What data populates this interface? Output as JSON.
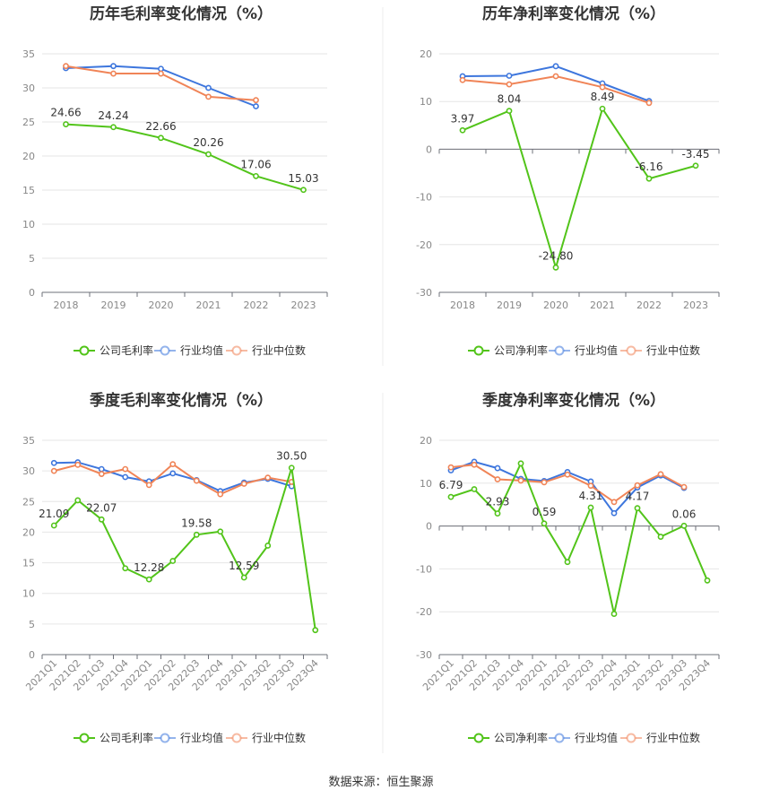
{
  "source_note": "数据来源：恒生聚源",
  "colors": {
    "company": "#52c41a",
    "avg": "#3d76dd",
    "median": "#f08457"
  },
  "chart_data": [
    {
      "type": "line",
      "title": "历年毛利率变化情况（%）",
      "x": [
        "2018",
        "2019",
        "2020",
        "2021",
        "2022",
        "2023"
      ],
      "ylim": [
        0,
        35
      ],
      "yticks": [
        0,
        5,
        10,
        15,
        20,
        25,
        30,
        35
      ],
      "grid": true,
      "legend_position": "bottom",
      "series": [
        {
          "key": "company",
          "name": "公司毛利率",
          "values": [
            24.66,
            24.24,
            22.66,
            20.26,
            17.06,
            15.03
          ],
          "labels": [
            "24.66",
            "24.24",
            "22.66",
            "20.26",
            "17.06",
            "15.03"
          ]
        },
        {
          "key": "avg",
          "name": "行业均值",
          "values": [
            32.9,
            33.2,
            32.8,
            30.0,
            27.3,
            null
          ]
        },
        {
          "key": "median",
          "name": "行业中位数",
          "values": [
            33.2,
            32.1,
            32.1,
            28.7,
            28.2,
            null
          ]
        }
      ]
    },
    {
      "type": "line",
      "title": "历年净利率变化情况（%）",
      "x": [
        "2018",
        "2019",
        "2020",
        "2021",
        "2022",
        "2023"
      ],
      "ylim": [
        -30,
        20
      ],
      "yticks": [
        -30,
        -20,
        -10,
        0,
        10,
        20
      ],
      "grid": true,
      "legend_position": "bottom",
      "series": [
        {
          "key": "company",
          "name": "公司净利率",
          "values": [
            3.97,
            8.04,
            -24.8,
            8.49,
            -6.16,
            -3.45
          ],
          "labels": [
            "3.97",
            "8.04",
            "-24.80",
            "8.49",
            "-6.16",
            "-3.45"
          ]
        },
        {
          "key": "avg",
          "name": "行业均值",
          "values": [
            15.3,
            15.4,
            17.4,
            13.8,
            10.1,
            null
          ]
        },
        {
          "key": "median",
          "name": "行业中位数",
          "values": [
            14.5,
            13.6,
            15.3,
            13.0,
            9.7,
            null
          ]
        }
      ]
    },
    {
      "type": "line",
      "title": "季度毛利率变化情况（%）",
      "x": [
        "2021Q1",
        "2021Q2",
        "2021Q3",
        "2021Q4",
        "2022Q1",
        "2022Q2",
        "2022Q3",
        "2022Q4",
        "2023Q1",
        "2023Q2",
        "2023Q3",
        "2023Q4"
      ],
      "ylim": [
        0,
        35
      ],
      "yticks": [
        0,
        5,
        10,
        15,
        20,
        25,
        30,
        35
      ],
      "grid": true,
      "legend_position": "bottom",
      "series": [
        {
          "key": "company",
          "name": "公司毛利率",
          "values": [
            21.09,
            25.2,
            22.07,
            14.1,
            12.28,
            15.3,
            19.58,
            20.1,
            12.59,
            17.8,
            30.5,
            4.0
          ],
          "labels": [
            "21.09",
            "",
            "22.07",
            "",
            "12.28",
            "",
            "19.58",
            "",
            "12.59",
            "",
            "30.50",
            ""
          ]
        },
        {
          "key": "avg",
          "name": "行业均值",
          "values": [
            31.3,
            31.4,
            30.3,
            29.0,
            28.3,
            29.6,
            28.5,
            26.7,
            28.1,
            28.7,
            27.5,
            null
          ]
        },
        {
          "key": "median",
          "name": "行业中位数",
          "values": [
            30.0,
            31.0,
            29.5,
            30.3,
            27.7,
            31.1,
            28.4,
            26.2,
            27.9,
            28.9,
            28.2,
            null
          ]
        }
      ]
    },
    {
      "type": "line",
      "title": "季度净利率变化情况（%）",
      "x": [
        "2021Q1",
        "2021Q2",
        "2021Q3",
        "2021Q4",
        "2022Q1",
        "2022Q2",
        "2022Q3",
        "2022Q4",
        "2023Q1",
        "2023Q2",
        "2023Q3",
        "2023Q4"
      ],
      "ylim": [
        -30,
        20
      ],
      "yticks": [
        -30,
        -20,
        -10,
        0,
        10,
        20
      ],
      "grid": true,
      "legend_position": "bottom",
      "series": [
        {
          "key": "company",
          "name": "公司净利率",
          "values": [
            6.79,
            8.6,
            2.93,
            14.6,
            0.59,
            -8.4,
            4.31,
            -20.5,
            4.17,
            -2.5,
            0.06,
            -12.7
          ],
          "labels": [
            "6.79",
            "",
            "2.93",
            "",
            "0.59",
            "",
            "4.31",
            "",
            "4.17",
            "",
            "0.06",
            ""
          ]
        },
        {
          "key": "avg",
          "name": "行业均值",
          "values": [
            13.0,
            15.0,
            13.5,
            11.0,
            10.5,
            12.6,
            10.4,
            3.0,
            9.0,
            11.8,
            8.9,
            null
          ]
        },
        {
          "key": "median",
          "name": "行业中位数",
          "values": [
            13.7,
            14.3,
            10.9,
            10.6,
            10.2,
            12.0,
            9.4,
            5.6,
            9.5,
            12.1,
            9.1,
            null
          ]
        }
      ]
    }
  ]
}
